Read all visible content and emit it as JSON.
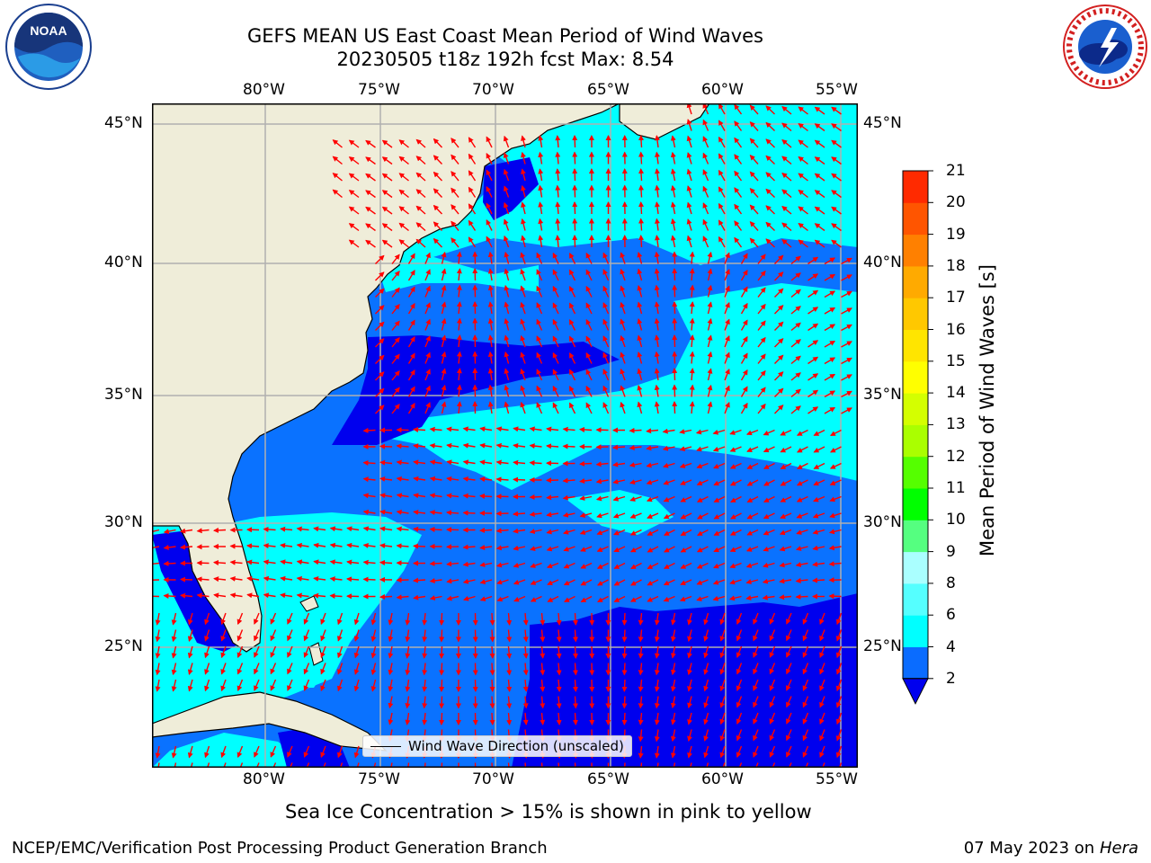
{
  "header": {
    "title_line1": "GEFS MEAN US East Coast Mean Period of Wind Waves",
    "title_line2": "20230505 t18z 192h fcst   Max: 8.54",
    "left_logo": "noaa-logo",
    "left_logo_text": "NOAA",
    "right_logo": "national-weather-service-logo",
    "right_logo_text": "NATIONAL WEATHER SERVICE"
  },
  "map": {
    "lon_labels": [
      "80°W",
      "75°W",
      "70°W",
      "65°W",
      "60°W",
      "55°W"
    ],
    "lat_labels": [
      "45°N",
      "40°N",
      "35°N",
      "30°N",
      "25°N"
    ],
    "colors": {
      "land": "#efedd9",
      "deep_blue": "#0000ee",
      "mid_blue": "#0a72ff",
      "cyan": "#00ffff",
      "arrow": "#ff0000",
      "grid": "#b0b0b0"
    },
    "legend_label": "Wind Wave Direction (unscaled)"
  },
  "colorbar": {
    "label": "Mean Period of Wind Waves [s]",
    "tick_labels": [
      "2",
      "4",
      "6",
      "8",
      "9",
      "10",
      "11",
      "12",
      "13",
      "14",
      "15",
      "16",
      "17",
      "18",
      "19",
      "20",
      "21"
    ],
    "colors": [
      "#0a6cff",
      "#00ffff",
      "#55ffff",
      "#aaffff",
      "#55ff80",
      "#00ff00",
      "#55ff00",
      "#aaff00",
      "#d4ff00",
      "#ffff00",
      "#ffe500",
      "#ffc800",
      "#ffaa00",
      "#ff8000",
      "#ff5500",
      "#ff2a00",
      "#ff0000"
    ],
    "extend_color": "#0000ee"
  },
  "subtitle": "Sea Ice Concentration > 15% is shown in pink to yellow",
  "footer": {
    "left": "NCEP/EMC/Verification Post Processing Product Generation Branch",
    "right_date": "07 May 2023 on",
    "right_machine": "Hera"
  }
}
